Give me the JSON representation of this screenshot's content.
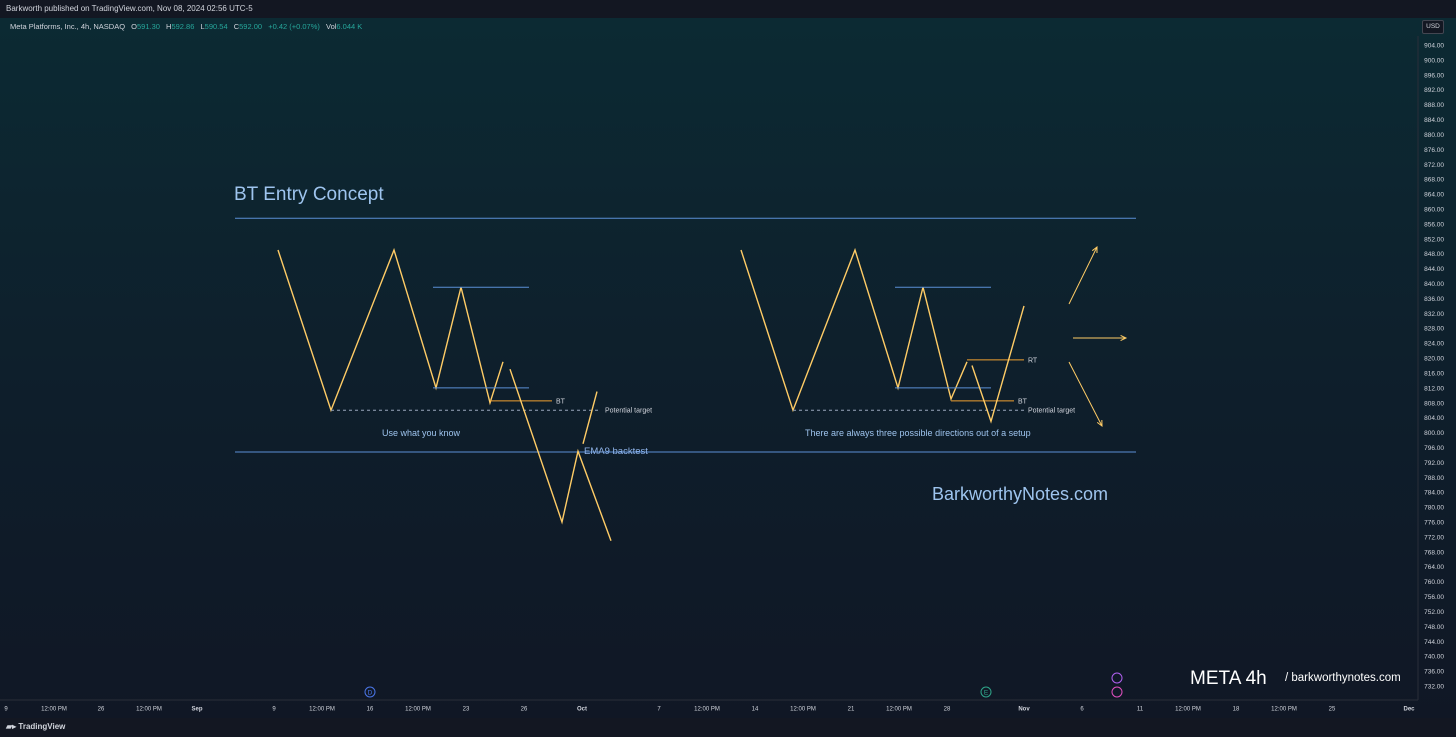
{
  "header": {
    "publish_line": "Barkworth published on TradingView.com, Nov 08, 2024 02:56 UTC-5"
  },
  "legend": {
    "symbol": "Meta Platforms, Inc., 4h, NASDAQ",
    "o_label": "O",
    "o_value": "591.30",
    "h_label": "H",
    "h_value": "592.86",
    "l_label": "L",
    "l_value": "590.54",
    "c_label": "C",
    "c_value": "592.00",
    "change": "+0.42 (+0.07%)",
    "vol_label": "Vol",
    "vol_value": "6.044 K"
  },
  "price_scale": {
    "currency": "USD",
    "ticks": [
      "904.00",
      "900.00",
      "896.00",
      "892.00",
      "888.00",
      "884.00",
      "880.00",
      "876.00",
      "872.00",
      "868.00",
      "864.00",
      "860.00",
      "856.00",
      "852.00",
      "848.00",
      "844.00",
      "840.00",
      "836.00",
      "832.00",
      "828.00",
      "824.00",
      "820.00",
      "816.00",
      "812.00",
      "808.00",
      "804.00",
      "800.00",
      "796.00",
      "792.00",
      "788.00",
      "784.00",
      "780.00",
      "776.00",
      "772.00",
      "768.00",
      "764.00",
      "760.00",
      "756.00",
      "752.00",
      "748.00",
      "744.00",
      "740.00",
      "736.00",
      "732.00"
    ]
  },
  "time_scale": {
    "ticks": [
      "9",
      "12:00 PM",
      "26",
      "12:00 PM",
      "Sep",
      "9",
      "12:00 PM",
      "16",
      "12:00 PM",
      "23",
      "26",
      "Oct",
      "7",
      "12:00 PM",
      "14",
      "12:00 PM",
      "21",
      "12:00 PM",
      "28",
      "Nov",
      "6",
      "11",
      "12:00 PM",
      "18",
      "12:00 PM",
      "25",
      "Dec"
    ],
    "bold_ticks": [
      "Sep",
      "Oct",
      "Nov",
      "Dec"
    ]
  },
  "chart_data": {
    "type": "line",
    "title": "BT Entry Concept",
    "currency": "USD",
    "y_range": [
      730,
      906
    ],
    "price_ticks": [
      904,
      900,
      896,
      892,
      888,
      884,
      880,
      876,
      872,
      868,
      864,
      860,
      856,
      852,
      848,
      844,
      840,
      836,
      832,
      828,
      824,
      820,
      816,
      812,
      808,
      804,
      800,
      796,
      792,
      788,
      784,
      780,
      776,
      772,
      768,
      764,
      760,
      756,
      752,
      748,
      744,
      740,
      736,
      732
    ],
    "horizontal_lines": [
      857.5,
      794.8
    ],
    "drawings": [
      {
        "name": "left-setup",
        "zigzag_prices": [
          849,
          806,
          849,
          812,
          839,
          808,
          819
        ],
        "range_lines": [
          839,
          812
        ],
        "bt_price": 808.5,
        "target_price": 806,
        "breakdown_prices": [
          817,
          776,
          795,
          771
        ],
        "breakout_prices": [
          797,
          811
        ]
      },
      {
        "name": "right-setup",
        "zigzag_prices": [
          849,
          806,
          849,
          812,
          839,
          809,
          819
        ],
        "range_lines": [
          839,
          812
        ],
        "rt_price": 819.5,
        "bt_price": 808.5,
        "target_price": 806,
        "final_prices": [
          818,
          803,
          834
        ]
      }
    ],
    "annotations": [
      "BT",
      "Potential target",
      "Use what you know",
      "EMA9 backtest",
      "RT",
      "BT",
      "Potential target",
      "There are always three possible directions out of a setup",
      "BarkworthyNotes.com"
    ],
    "watermark": {
      "symbol": "META 4h",
      "site": "/ barkworthynotes.com"
    },
    "event_markers": [
      "D",
      "E"
    ],
    "colors": {
      "zigzag": "#ffcc66",
      "range_line": "#5b8fd6",
      "bt_line": "#f0a030",
      "label_blue": "#9ec4ee",
      "price_text": "#d1d4dc",
      "ema_text": "#8fb4ea"
    }
  },
  "footer": {
    "brand": "TradingView"
  }
}
